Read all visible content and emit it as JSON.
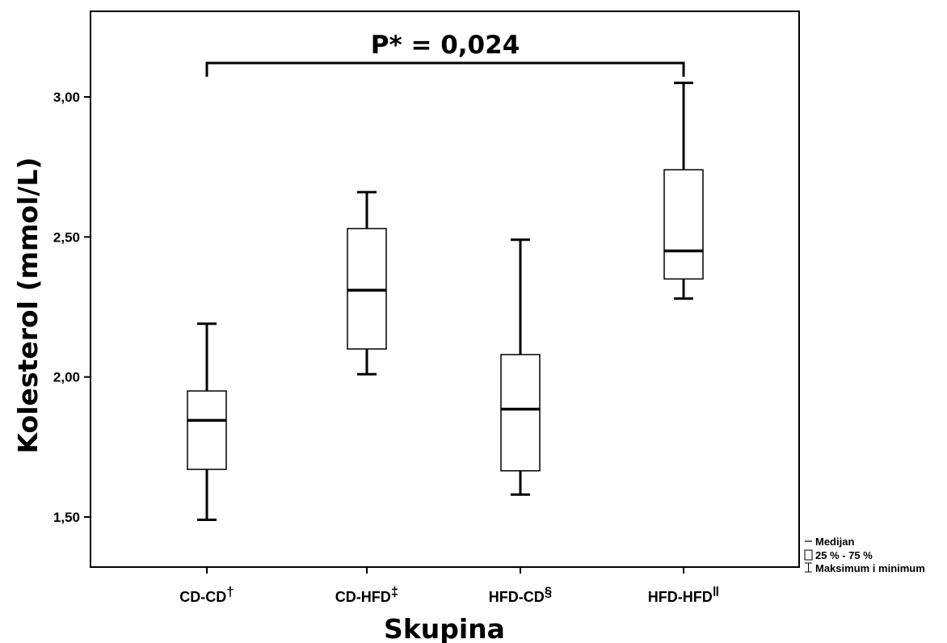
{
  "chart_data": {
    "type": "boxplot",
    "title": "",
    "xlabel": "Skupina",
    "ylabel": "Kolesterol (mmol/L)",
    "ylim": [
      1.3,
      3.3
    ],
    "yticks": [
      "1,50",
      "2,00",
      "2,50",
      "3,00"
    ],
    "ytick_values": [
      1.5,
      2.0,
      2.5,
      3.0
    ],
    "grid": false,
    "categories": [
      {
        "base": "CD-CD",
        "mark": "†"
      },
      {
        "base": "CD-HFD",
        "mark": "‡"
      },
      {
        "base": "HFD-CD",
        "mark": "§"
      },
      {
        "base": "HFD-HFD",
        "mark": "ǁ"
      }
    ],
    "boxes": [
      {
        "min": 1.49,
        "q1": 1.67,
        "median": 1.845,
        "q3": 1.95,
        "max": 2.19
      },
      {
        "min": 2.01,
        "q1": 2.1,
        "median": 2.31,
        "q3": 2.53,
        "max": 2.66
      },
      {
        "min": 1.58,
        "q1": 1.665,
        "median": 1.885,
        "q3": 2.08,
        "max": 2.49
      },
      {
        "min": 2.28,
        "q1": 2.35,
        "median": 2.45,
        "q3": 2.74,
        "max": 3.05
      }
    ],
    "annotation": {
      "text": "P* = 0,024",
      "from_category": 0,
      "to_category": 3
    },
    "legend": {
      "position": "bottom-right",
      "items": [
        {
          "symbol": "median-line",
          "label": "Medijan"
        },
        {
          "symbol": "box",
          "label": "25 % - 75 %"
        },
        {
          "symbol": "whisker",
          "label": "Maksimum i minimum"
        }
      ]
    }
  }
}
